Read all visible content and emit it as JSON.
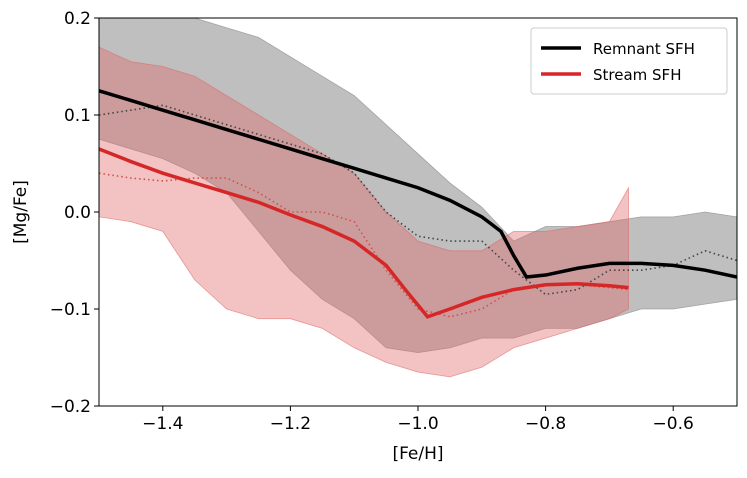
{
  "chart_data": {
    "type": "line",
    "xlabel": "[Fe/H]",
    "ylabel": "[Mg/Fe]",
    "xlim": [
      -1.5,
      -0.5
    ],
    "ylim": [
      -0.2,
      0.2
    ],
    "xticks": [
      {
        "value": -1.4,
        "label": "−1.4"
      },
      {
        "value": -1.2,
        "label": "−1.2"
      },
      {
        "value": -1.0,
        "label": "−1.0"
      },
      {
        "value": -0.8,
        "label": "−0.8"
      },
      {
        "value": -0.6,
        "label": "−0.6"
      }
    ],
    "yticks": [
      {
        "value": -0.2,
        "label": "−0.2"
      },
      {
        "value": -0.1,
        "label": "−0.1"
      },
      {
        "value": 0,
        "label": "0.0"
      },
      0.1,
      0.2
    ],
    "legend": "upper right",
    "bands": [
      {
        "color": "#808080",
        "alpha": 0.5,
        "x": [
          -1.5,
          -1.45,
          -1.4,
          -1.35,
          -1.3,
          -1.25,
          -1.2,
          -1.15,
          -1.1,
          -1.05,
          -1.0,
          -0.95,
          -0.9,
          -0.85,
          -0.8,
          -0.75,
          -0.7,
          -0.65,
          -0.6,
          -0.55,
          -0.5
        ],
        "upper": [
          0.2,
          0.2,
          0.2,
          0.2,
          0.19,
          0.18,
          0.16,
          0.14,
          0.12,
          0.09,
          0.06,
          0.03,
          0.005,
          -0.03,
          -0.015,
          -0.015,
          -0.01,
          -0.005,
          -0.005,
          0.0,
          -0.005
        ],
        "lower": [
          0.075,
          0.065,
          0.055,
          0.04,
          0.02,
          -0.02,
          -0.06,
          -0.09,
          -0.11,
          -0.14,
          -0.145,
          -0.14,
          -0.13,
          -0.13,
          -0.12,
          -0.12,
          -0.11,
          -0.1,
          -0.1,
          -0.095,
          -0.09
        ]
      },
      {
        "color": "#e06666",
        "alpha": 0.4,
        "x": [
          -1.5,
          -1.45,
          -1.4,
          -1.35,
          -1.3,
          -1.25,
          -1.2,
          -1.15,
          -1.1,
          -1.05,
          -1.0,
          -0.95,
          -0.9,
          -0.85,
          -0.8,
          -0.75,
          -0.7,
          -0.67
        ],
        "upper": [
          0.17,
          0.155,
          0.15,
          0.14,
          0.12,
          0.1,
          0.08,
          0.06,
          0.04,
          0.0,
          -0.03,
          -0.04,
          -0.04,
          -0.02,
          -0.02,
          -0.015,
          -0.01,
          0.025
        ],
        "lower": [
          -0.005,
          -0.01,
          -0.02,
          -0.07,
          -0.1,
          -0.11,
          -0.11,
          -0.12,
          -0.14,
          -0.155,
          -0.165,
          -0.17,
          -0.16,
          -0.14,
          -0.13,
          -0.12,
          -0.11,
          -0.1
        ]
      }
    ],
    "series": [
      {
        "color": "#444444",
        "style": "dotted",
        "x": [
          -1.5,
          -1.45,
          -1.4,
          -1.35,
          -1.3,
          -1.25,
          -1.2,
          -1.15,
          -1.1,
          -1.05,
          -1.0,
          -0.95,
          -0.9,
          -0.85,
          -0.8,
          -0.75,
          -0.7,
          -0.65,
          -0.6,
          -0.55,
          -0.5
        ],
        "values": [
          0.1,
          0.105,
          0.11,
          0.1,
          0.09,
          0.08,
          0.07,
          0.06,
          0.04,
          0.0,
          -0.025,
          -0.03,
          -0.03,
          -0.06,
          -0.085,
          -0.08,
          -0.06,
          -0.06,
          -0.055,
          -0.04,
          -0.05
        ]
      },
      {
        "color": "#d0504a",
        "style": "dotted",
        "x": [
          -1.5,
          -1.45,
          -1.4,
          -1.35,
          -1.3,
          -1.25,
          -1.2,
          -1.15,
          -1.1,
          -1.05,
          -1.0,
          -0.95,
          -0.9,
          -0.85,
          -0.8,
          -0.75,
          -0.7,
          -0.67
        ],
        "values": [
          0.04,
          0.035,
          0.032,
          0.035,
          0.035,
          0.02,
          0.0,
          0.0,
          -0.01,
          -0.06,
          -0.1,
          -0.108,
          -0.1,
          -0.08,
          -0.075,
          -0.075,
          -0.078,
          -0.08
        ]
      },
      {
        "name": "Remnant SFH",
        "color": "#000000",
        "style": "solid",
        "x": [
          -1.5,
          -1.45,
          -1.4,
          -1.35,
          -1.3,
          -1.25,
          -1.2,
          -1.15,
          -1.1,
          -1.05,
          -1.0,
          -0.95,
          -0.9,
          -0.87,
          -0.85,
          -0.83,
          -0.8,
          -0.75,
          -0.7,
          -0.65,
          -0.6,
          -0.55,
          -0.5
        ],
        "values": [
          0.125,
          0.115,
          0.105,
          0.095,
          0.085,
          0.075,
          0.065,
          0.055,
          0.045,
          0.035,
          0.025,
          0.012,
          -0.005,
          -0.02,
          -0.045,
          -0.067,
          -0.065,
          -0.058,
          -0.053,
          -0.053,
          -0.055,
          -0.06,
          -0.067
        ]
      },
      {
        "name": "Stream SFH",
        "color": "#d62728",
        "style": "solid",
        "x": [
          -1.5,
          -1.45,
          -1.4,
          -1.35,
          -1.3,
          -1.25,
          -1.2,
          -1.15,
          -1.1,
          -1.05,
          -1.02,
          -0.985,
          -0.95,
          -0.9,
          -0.85,
          -0.8,
          -0.75,
          -0.7,
          -0.67
        ],
        "values": [
          0.065,
          0.052,
          0.04,
          0.03,
          0.02,
          0.01,
          -0.003,
          -0.015,
          -0.03,
          -0.055,
          -0.08,
          -0.108,
          -0.1,
          -0.088,
          -0.08,
          -0.075,
          -0.074,
          -0.076,
          -0.078
        ]
      }
    ]
  }
}
